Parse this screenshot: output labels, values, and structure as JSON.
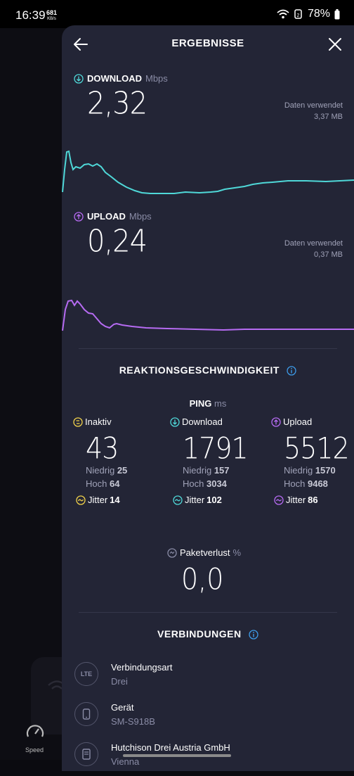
{
  "status_bar": {
    "time": "16:39",
    "net_speed": "681",
    "net_unit": "KB/s",
    "battery": "78%"
  },
  "background": {
    "speed_label": "Speed"
  },
  "header": {
    "title": "ERGEBNISSE"
  },
  "download": {
    "label": "DOWNLOAD",
    "unit": "Mbps",
    "value": "2,32",
    "data_used_label": "Daten verwendet",
    "data_used_value": "3,37 MB",
    "color": "#4fd8d8"
  },
  "upload": {
    "label": "UPLOAD",
    "unit": "Mbps",
    "value": "0,24",
    "data_used_label": "Daten verwendet",
    "data_used_value": "0,37 MB",
    "color": "#b66bf2"
  },
  "responsiveness": {
    "title": "REAKTIONSGESCHWINDIGKEIT",
    "ping_label": "PING",
    "ping_unit": "ms",
    "columns": [
      {
        "label": "Inaktiv",
        "value": "43",
        "low_label": "Niedrig",
        "low": "25",
        "high_label": "Hoch",
        "high": "64",
        "jitter_label": "Jitter",
        "jitter": "14",
        "color": "#f2d24a"
      },
      {
        "label": "Download",
        "value": "1791",
        "low_label": "Niedrig",
        "low": "157",
        "high_label": "Hoch",
        "high": "3034",
        "jitter_label": "Jitter",
        "jitter": "102",
        "color": "#4fd8d8"
      },
      {
        "label": "Upload",
        "value": "5512",
        "low_label": "Niedrig",
        "low": "1570",
        "high_label": "Hoch",
        "high": "9468",
        "jitter_label": "Jitter",
        "jitter": "86",
        "color": "#b66bf2"
      }
    ],
    "packet_loss_label": "Paketverlust",
    "packet_loss_unit": "%",
    "packet_loss_value": "0,0"
  },
  "connections": {
    "title": "VERBINDUNGEN",
    "items": [
      {
        "icon": "LTE",
        "title": "Verbindungsart",
        "subtitle": "Drei"
      },
      {
        "icon": "phone-icon",
        "title": "Gerät",
        "subtitle": "SM-S918B"
      },
      {
        "icon": "server-icon",
        "title": "Hutchison Drei Austria GmbH",
        "subtitle": "Vienna"
      }
    ]
  },
  "colors": {
    "accent_info": "#3d9be9",
    "panel": "#232536"
  }
}
